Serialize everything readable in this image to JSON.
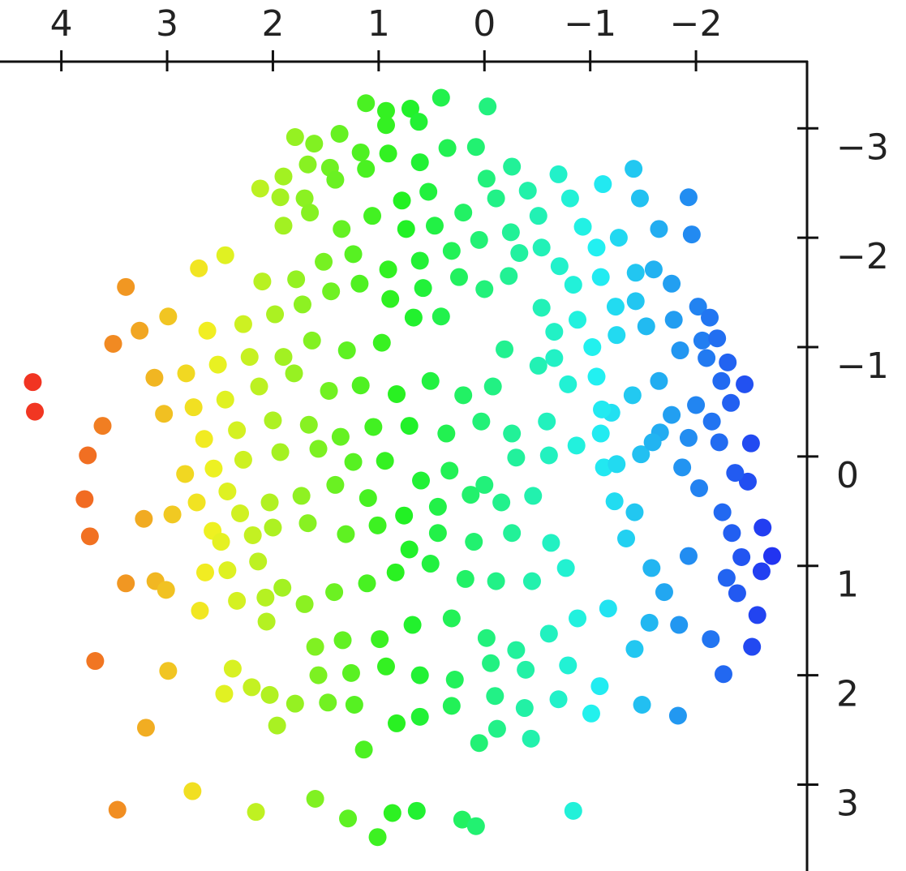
{
  "chart_data": {
    "type": "scatter",
    "x": [
      4.27,
      4.25,
      3.61,
      3.75,
      3.78,
      3.73,
      3.39,
      3.51,
      3.26,
      2.99,
      3.22,
      3.39,
      3.11,
      3.01,
      3.68,
      2.99,
      3.2,
      3.47,
      2.76,
      2.69,
      2.64,
      2.43,
      2.34,
      2.46,
      2.38,
      2.2,
      1.96,
      2.03,
      3.12,
      3.03,
      2.82,
      2.75,
      2.83,
      2.95,
      2.72,
      2.57,
      2.49,
      2.7,
      2.45,
      2.62,
      2.52,
      2.45,
      2.65,
      2.56,
      2.43,
      2.31,
      2.19,
      2.14,
      2.07,
      2.06,
      1.91,
      1.79,
      2.16,
      1.6,
      1.29,
      1.01,
      0.87,
      0.64,
      0.21,
      0.08,
      -0.84,
      1.14,
      0.83,
      0.61,
      0.05,
      -0.12,
      -0.44,
      0.31,
      -0.1,
      -0.38,
      -0.7,
      -1.01,
      -1.49,
      -1.83,
      -2.26,
      -2.14,
      -1.84,
      -1.56,
      -1.7,
      -1.93,
      -1.58,
      -1.34,
      -1.23,
      -1.42,
      -1.13,
      -1.48,
      -1.66,
      -1.87,
      -2.03,
      -2.25,
      -2.34,
      -2.43,
      -2.29,
      -2.39,
      -2.58,
      -2.53,
      -2.63,
      -2.72,
      -2.62,
      -2.49,
      -2.37,
      -2.52,
      -2.46,
      -2.33,
      -2.15,
      -2.22,
      -2.0,
      -1.93,
      -1.77,
      -1.59,
      -1.25,
      -1.1,
      -0.87,
      -1.2,
      -1.4,
      -1.65,
      -1.85,
      -2.1,
      -2.06,
      -2.2,
      -2.3,
      -2.24,
      -2.02,
      -2.13,
      -1.53,
      -1.79,
      -1.43,
      -1.24,
      -1.25,
      -1.02,
      -1.06,
      -1.11,
      -0.79,
      -0.66,
      -0.88,
      -0.66,
      -0.54,
      -0.84,
      -1.1,
      -1.43,
      -1.6,
      -1.77,
      -0.71,
      -0.54,
      -0.33,
      -0.25,
      -0.51,
      -0.81,
      -0.93,
      -1.06,
      -1.27,
      -1.47,
      -1.65,
      -1.93,
      -1.96,
      -1.41,
      -1.12,
      -0.7,
      -0.41,
      -0.26,
      -0.02,
      -0.11,
      0.08,
      -0.03,
      0.35,
      0.41,
      0.61,
      0.53,
      0.78,
      0.91,
      1.12,
      0.93,
      0.93,
      0.7,
      0.62,
      1.37,
      1.79,
      1.61,
      1.67,
      1.46,
      1.41,
      1.17,
      1.12,
      1.9,
      2.12,
      1.93,
      1.7,
      1.65,
      1.9,
      1.35,
      1.06,
      0.74,
      0.47,
      0.2,
      0.05,
      -0.23,
      0.0,
      0.31,
      0.61,
      0.91,
      1.24,
      1.52,
      1.78,
      2.1,
      2.28,
      1.98,
      1.72,
      1.45,
      1.18,
      0.89,
      0.58,
      0.24,
      0.41,
      0.67,
      0.97,
      1.3,
      1.63,
      1.9,
      2.22,
      2.13,
      1.8,
      1.47,
      1.17,
      0.83,
      0.51,
      0.2,
      -0.08,
      -0.19,
      -0.51,
      -0.59,
      -0.26,
      0.03,
      0.36,
      0.71,
      1.05,
      1.36,
      1.66,
      2.0,
      2.34,
      2.28,
      1.93,
      1.57,
      1.24,
      0.94,
      0.6,
      0.33,
      0.0,
      -0.3,
      -0.61,
      -0.46,
      -0.16,
      0.13,
      0.44,
      0.76,
      1.1,
      1.41,
      1.73,
      2.03,
      2.0,
      1.67,
      1.31,
      1.01,
      0.71,
      0.44,
      0.1,
      -0.26,
      -0.63,
      -0.77,
      -0.45,
      -0.11,
      0.18,
      0.51,
      0.84,
      1.11,
      1.42,
      1.7,
      1.6,
      1.34,
      0.99,
      0.68,
      0.31,
      -0.02,
      -0.3,
      -0.61,
      -0.88,
      -1.17,
      -1.42,
      -1.09,
      -0.79,
      -0.39,
      -0.06,
      0.28,
      0.61,
      0.93,
      1.26,
      1.57,
      1.48,
      1.23
    ],
    "y": [
      -0.68,
      -0.41,
      -0.28,
      -0.01,
      0.39,
      0.73,
      -1.55,
      -1.03,
      -1.15,
      -1.28,
      0.57,
      1.16,
      1.14,
      1.22,
      1.87,
      1.96,
      2.48,
      3.23,
      3.06,
      1.41,
      1.06,
      1.04,
      1.32,
      2.17,
      1.94,
      2.11,
      2.46,
      2.18,
      -0.72,
      -0.39,
      -0.76,
      -0.45,
      0.16,
      0.53,
      0.42,
      0.68,
      0.78,
      -1.72,
      -1.84,
      -1.15,
      -0.84,
      -0.52,
      -0.16,
      0.11,
      0.32,
      0.52,
      0.72,
      0.96,
      1.29,
      1.51,
      1.2,
      2.26,
      3.25,
      3.13,
      3.31,
      3.48,
      3.26,
      3.24,
      3.32,
      3.38,
      3.24,
      2.68,
      2.44,
      2.38,
      2.62,
      2.49,
      2.58,
      2.28,
      2.19,
      2.3,
      2.22,
      2.35,
      2.27,
      2.37,
      1.99,
      1.67,
      1.54,
      1.52,
      1.24,
      0.91,
      1.02,
      0.75,
      0.41,
      0.51,
      0.1,
      -0.02,
      -0.22,
      0.1,
      0.29,
      0.51,
      0.7,
      0.92,
      1.11,
      1.25,
      1.45,
      1.74,
      0.65,
      0.91,
      1.05,
      0.23,
      0.15,
      -0.12,
      -0.66,
      -0.49,
      -0.32,
      -0.13,
      -0.47,
      -0.17,
      -0.38,
      -0.13,
      0.07,
      -0.21,
      -0.1,
      -0.4,
      -0.56,
      -0.69,
      -0.97,
      -0.9,
      -1.06,
      -1.08,
      -0.86,
      -0.69,
      -1.37,
      -1.27,
      -1.19,
      -1.25,
      -1.42,
      -1.37,
      -1.11,
      -1.0,
      -0.73,
      -0.43,
      -0.66,
      -0.9,
      -1.25,
      -1.14,
      -1.36,
      -1.57,
      -1.64,
      -1.68,
      -1.71,
      -1.58,
      -1.74,
      -1.91,
      -1.86,
      -2.05,
      -2.2,
      -2.36,
      -2.1,
      -1.91,
      -2.0,
      -2.36,
      -2.08,
      -2.37,
      -2.03,
      -2.63,
      -2.49,
      -2.58,
      -2.43,
      -2.65,
      -2.54,
      -2.36,
      -2.83,
      -3.2,
      -2.82,
      -3.28,
      -2.69,
      -2.42,
      -2.34,
      -2.77,
      -3.23,
      -3.16,
      -3.03,
      -3.18,
      -3.06,
      -2.95,
      -2.92,
      -2.86,
      -2.67,
      -2.64,
      -2.53,
      -2.78,
      -2.63,
      -2.56,
      -2.45,
      -2.37,
      -2.36,
      -2.23,
      -2.11,
      -2.08,
      -2.2,
      -2.08,
      -2.11,
      -2.23,
      -1.98,
      -1.65,
      -1.53,
      -1.88,
      -1.79,
      -1.71,
      -1.85,
      -1.78,
      -1.62,
      -1.6,
      -1.21,
      -1.3,
      -1.39,
      -1.51,
      -1.58,
      -1.44,
      -1.54,
      -1.64,
      -1.28,
      -1.27,
      -1.04,
      -0.97,
      -1.06,
      -0.91,
      -0.91,
      -0.64,
      -0.76,
      -0.6,
      -0.65,
      -0.57,
      -0.69,
      -0.56,
      -0.64,
      -0.98,
      -0.83,
      -0.32,
      -0.21,
      -0.32,
      -0.21,
      -0.28,
      -0.27,
      -0.18,
      -0.29,
      -0.33,
      -0.24,
      0.03,
      -0.04,
      -0.07,
      0.05,
      0.04,
      0.22,
      0.13,
      0.26,
      0.01,
      -0.01,
      0.36,
      0.42,
      0.35,
      0.46,
      0.54,
      0.38,
      0.26,
      0.36,
      0.42,
      0.65,
      0.61,
      0.71,
      0.63,
      0.85,
      0.7,
      0.78,
      0.7,
      0.79,
      1.02,
      1.14,
      1.14,
      1.12,
      0.98,
      1.06,
      1.16,
      1.24,
      1.35,
      1.74,
      1.68,
      1.67,
      1.54,
      1.48,
      1.66,
      1.77,
      1.62,
      1.48,
      1.39,
      1.76,
      2.1,
      1.91,
      1.95,
      1.89,
      2.04,
      2.0,
      1.92,
      1.98,
      2.0,
      2.25,
      2.27
    ],
    "xlim": [
      4.58,
      -3.05
    ],
    "ylim": [
      -3.61,
      3.79
    ],
    "xticks": [
      4,
      3,
      2,
      1,
      0,
      {
        "value": -1,
        "label": "−1"
      },
      {
        "value": -2,
        "label": "−2"
      }
    ],
    "yticks": [
      {
        "value": -3,
        "label": "−3"
      },
      {
        "value": -2,
        "label": "−2"
      },
      {
        "value": -1,
        "label": "−1"
      },
      0,
      1,
      2,
      3
    ],
    "x_axis_position": "top",
    "y_axis_position": "right",
    "colormap": "rainbow"
  }
}
